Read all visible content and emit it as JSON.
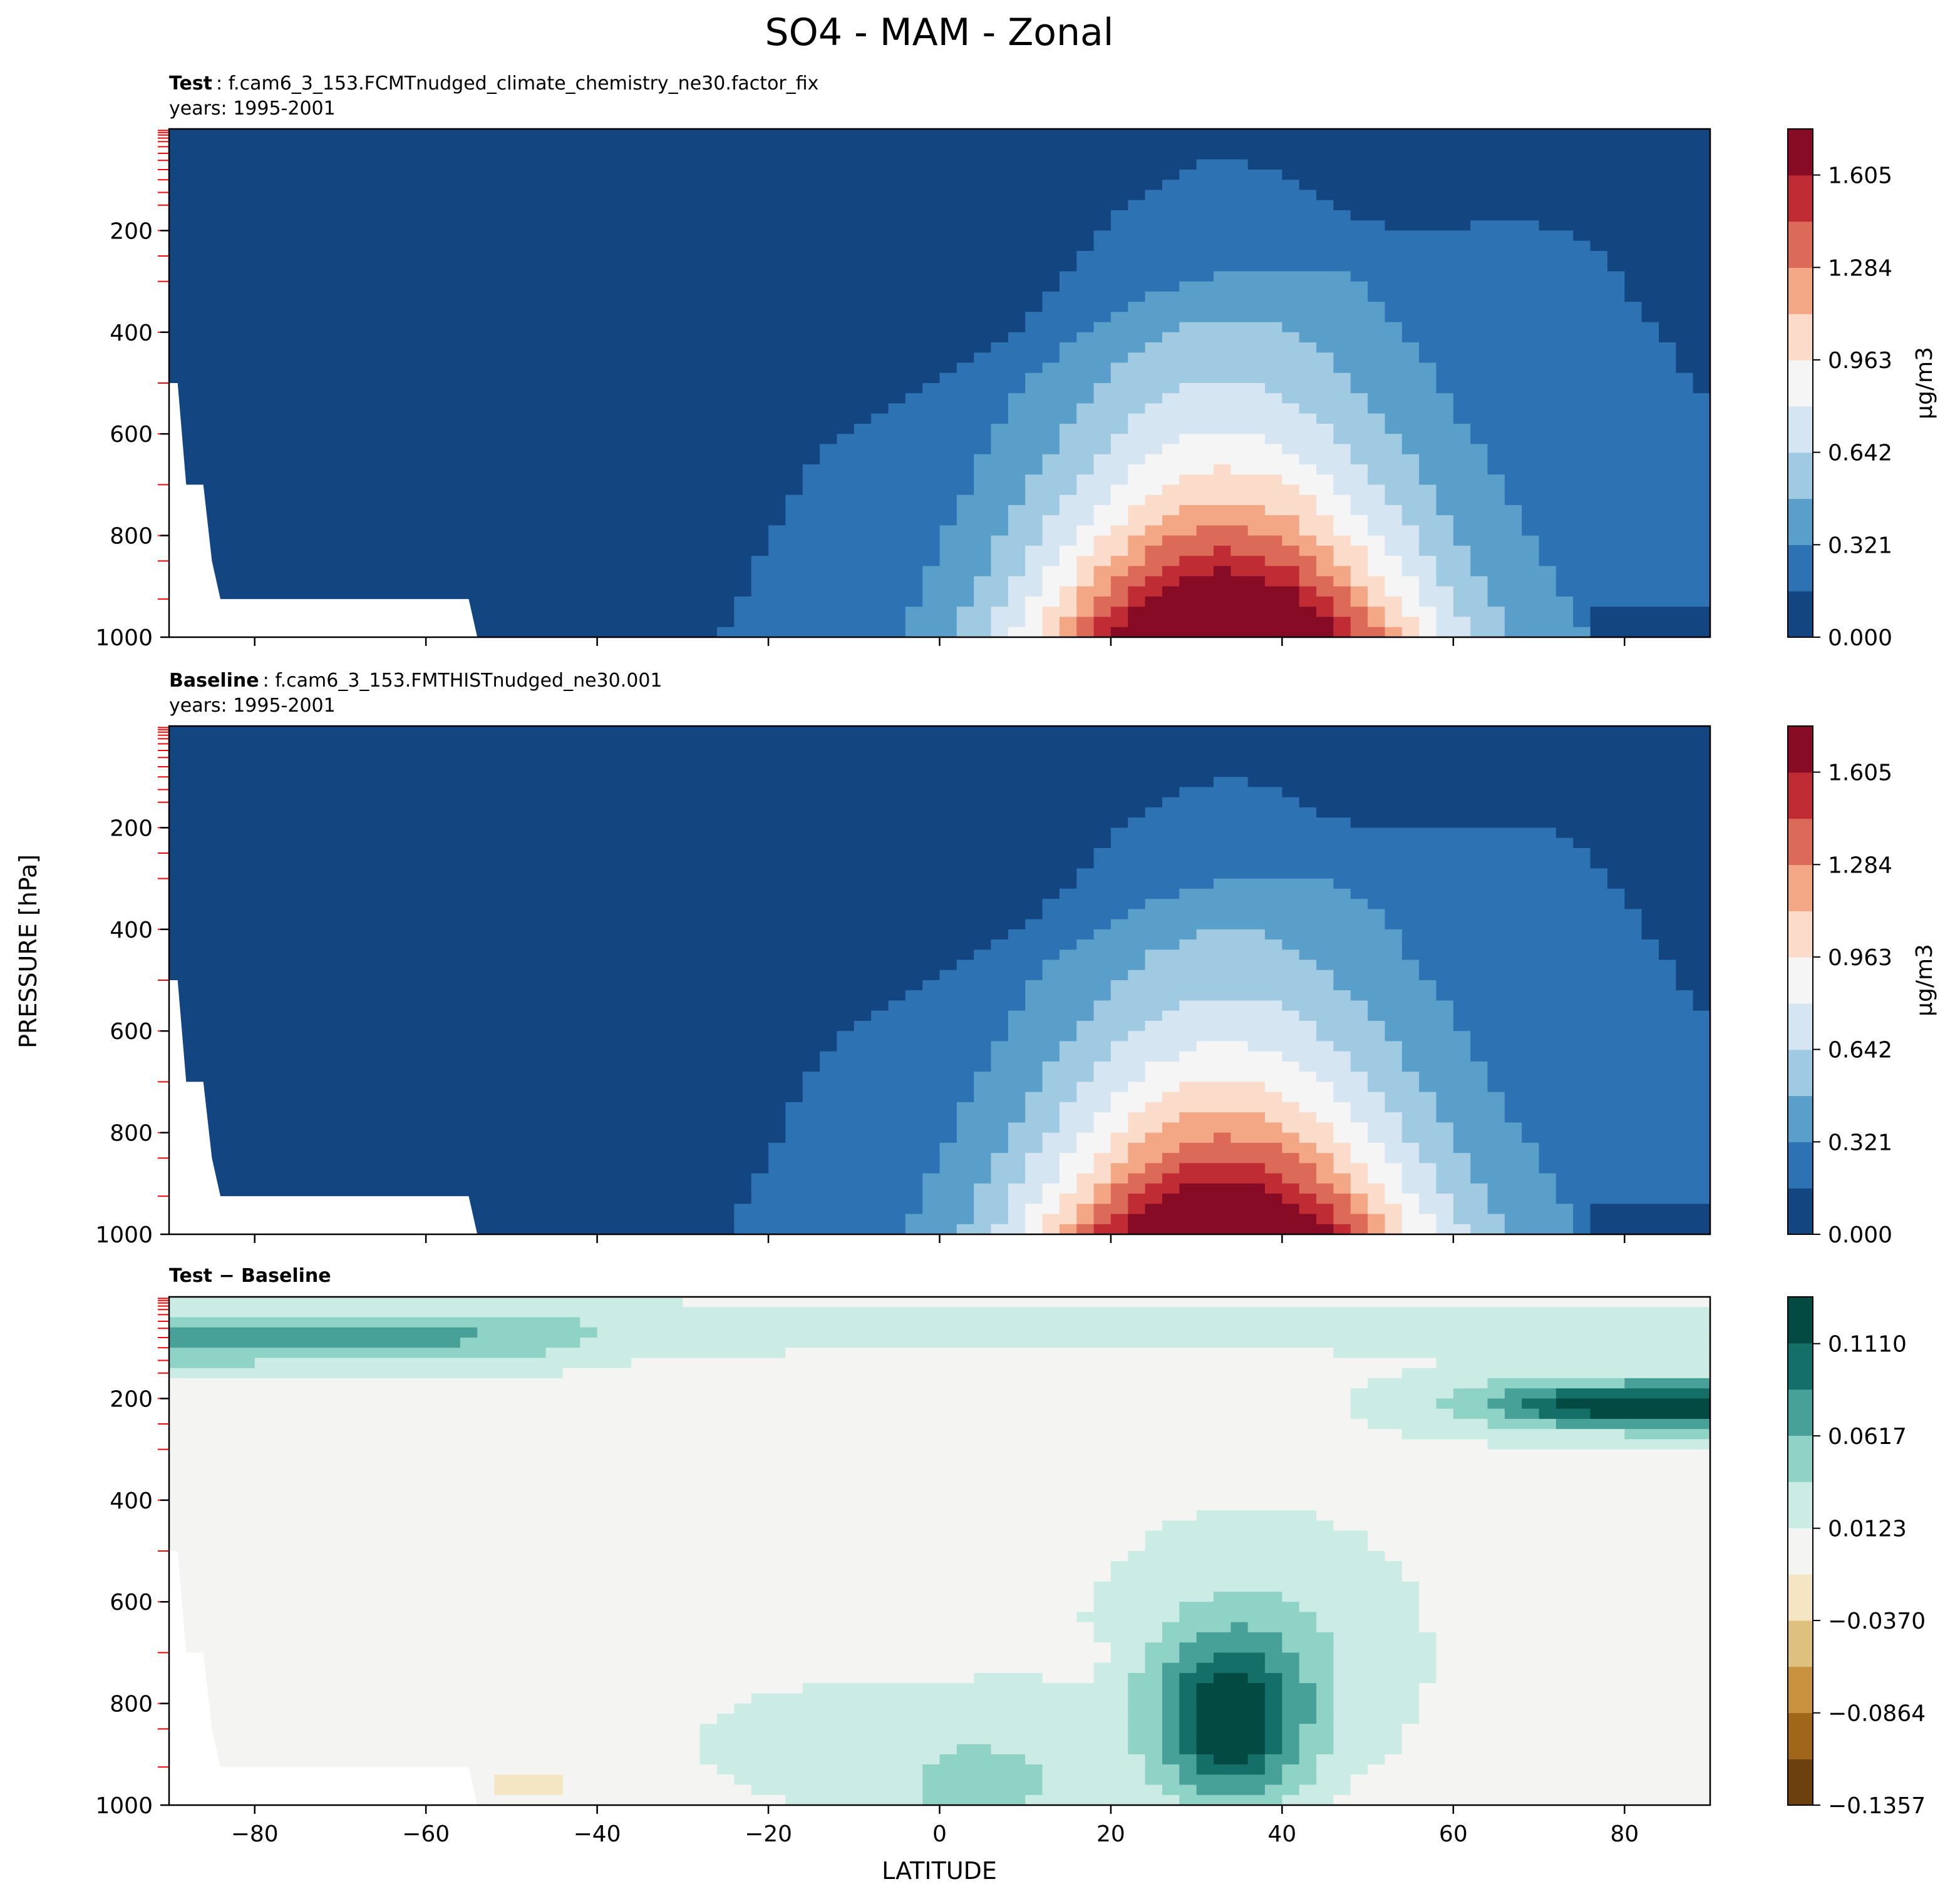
{
  "figure": {
    "title": "SO4 - MAM - Zonal",
    "xlabel": "LATITUDE",
    "ylabel": "PRESSURE [hPa]"
  },
  "colors": {
    "rdbu": [
      "#134681",
      "#2d72b3",
      "#599fca",
      "#9fcae1",
      "#d5e5f1",
      "#f5f5f5",
      "#fbdccb",
      "#f4a785",
      "#db6a58",
      "#bf2c33",
      "#870b25"
    ],
    "brbg": [
      "#6d4010",
      "#a06619",
      "#c9923e",
      "#dfc17f",
      "#f4e6c2",
      "#f4f4f2",
      "#cbebe5",
      "#8ed3c5",
      "#48a198",
      "#136f68",
      "#034a43"
    ],
    "missing": "#ffffff",
    "level_tick": "#ff0000"
  },
  "chart_data": [
    {
      "type": "heatmap",
      "title_bold": "Test",
      "title_rest": ": f.cam6_3_153.FCMTnudged_climate_chemistry_ne30.factor_fix",
      "subtitle": "years: 1995-2001",
      "xlim": [
        -90,
        90
      ],
      "ylim": [
        1000,
        0
      ],
      "xticks": [
        -80,
        -60,
        -40,
        -20,
        0,
        20,
        40,
        60,
        80
      ],
      "yticks": [
        200,
        400,
        600,
        800,
        1000
      ],
      "colorbar": {
        "label": "μg/m3",
        "ticks": [
          "0.000",
          "0.321",
          "0.642",
          "0.963",
          "1.284",
          "1.605"
        ],
        "tick_values": [
          0,
          0.321,
          0.642,
          0.963,
          1.284,
          1.605
        ],
        "range": [
          0,
          1.765
        ]
      },
      "field": {
        "peak": 1.85,
        "peak_lat": 33,
        "peak_sigma_lat": 15,
        "peak_depth": 330,
        "bg_lat": 40,
        "bg_sigma_lat": 32,
        "bg_top": 520,
        "bg_amp": 0.32
      }
    },
    {
      "type": "heatmap",
      "title_bold": "Baseline",
      "title_rest": ": f.cam6_3_153.FMTHISTnudged_ne30.001",
      "subtitle": "years: 1995-2001",
      "xlim": [
        -90,
        90
      ],
      "ylim": [
        1000,
        0
      ],
      "xticks": [
        -80,
        -60,
        -40,
        -20,
        0,
        20,
        40,
        60,
        80
      ],
      "yticks": [
        200,
        400,
        600,
        800,
        1000
      ],
      "colorbar": {
        "label": "μg/m3",
        "ticks": [
          "0.000",
          "0.321",
          "0.642",
          "0.963",
          "1.284",
          "1.605"
        ],
        "tick_values": [
          0,
          0.321,
          0.642,
          0.963,
          1.284,
          1.605
        ],
        "range": [
          0,
          1.765
        ]
      },
      "field": {
        "peak": 1.75,
        "peak_lat": 33,
        "peak_sigma_lat": 15,
        "peak_depth": 320,
        "bg_lat": 40,
        "bg_sigma_lat": 32,
        "bg_top": 520,
        "bg_amp": 0.3
      }
    },
    {
      "type": "heatmap",
      "title_bold": "Test − Baseline",
      "xlim": [
        -90,
        90
      ],
      "ylim": [
        1000,
        0
      ],
      "xticks": [
        -80,
        -60,
        -40,
        -20,
        0,
        20,
        40,
        60,
        80
      ],
      "yticks": [
        200,
        400,
        600,
        800,
        1000
      ],
      "colorbar": {
        "label": "",
        "ticks": [
          "−0.1357",
          "−0.0864",
          "−0.0370",
          "0.0123",
          "0.0617",
          "0.1110"
        ],
        "tick_values": [
          -0.1357,
          -0.0864,
          -0.037,
          0.0123,
          0.0617,
          0.111
        ],
        "range": [
          -0.1357,
          0.136
        ]
      }
    }
  ]
}
